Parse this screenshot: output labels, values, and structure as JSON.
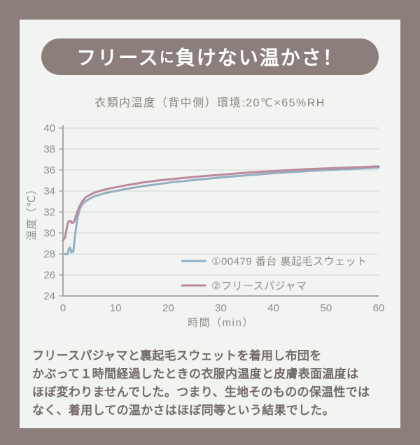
{
  "header": {
    "title_part1": "フリース",
    "title_particle": "に",
    "title_part2": "負けない温かさ！"
  },
  "chart_data": {
    "type": "line",
    "title": "衣類内温度（背中側）環境:20℃×65%RH",
    "xlabel": "時間（min）",
    "ylabel": "温度（℃）",
    "xlim": [
      0,
      60
    ],
    "ylim": [
      24,
      40
    ],
    "x_ticks": [
      0,
      10,
      20,
      30,
      40,
      50,
      60
    ],
    "y_ticks": [
      24,
      26,
      28,
      30,
      32,
      34,
      36,
      38,
      40
    ],
    "grid": true,
    "legend_position": "inside-right-bottom",
    "series": [
      {
        "name": "①00479 番台 裏起毛スウェット",
        "color": "#92afc1",
        "points": [
          [
            0,
            28.0
          ],
          [
            0.9,
            28.0
          ],
          [
            1.1,
            28.5
          ],
          [
            1.35,
            28.6
          ],
          [
            1.6,
            28.15
          ],
          [
            1.95,
            28.25
          ],
          [
            2.3,
            29.8
          ],
          [
            2.7,
            31.3
          ],
          [
            3.1,
            32.2
          ],
          [
            3.6,
            32.7
          ],
          [
            4.2,
            33.0
          ],
          [
            5,
            33.25
          ],
          [
            6,
            33.5
          ],
          [
            7,
            33.65
          ],
          [
            8,
            33.8
          ],
          [
            10,
            34.0
          ],
          [
            12,
            34.2
          ],
          [
            15,
            34.45
          ],
          [
            18,
            34.65
          ],
          [
            21,
            34.85
          ],
          [
            25,
            35.05
          ],
          [
            30,
            35.3
          ],
          [
            35,
            35.5
          ],
          [
            40,
            35.7
          ],
          [
            45,
            35.85
          ],
          [
            50,
            36.0
          ],
          [
            55,
            36.1
          ],
          [
            60,
            36.25
          ]
        ]
      },
      {
        "name": "②フリースパジャマ",
        "color": "#bb8a9e",
        "points": [
          [
            0,
            29.3
          ],
          [
            0.4,
            29.6
          ],
          [
            0.8,
            30.7
          ],
          [
            1.05,
            31.1
          ],
          [
            1.5,
            31.15
          ],
          [
            1.7,
            30.95
          ],
          [
            2.1,
            31.05
          ],
          [
            2.4,
            31.5
          ],
          [
            2.8,
            32.1
          ],
          [
            3.2,
            32.6
          ],
          [
            3.7,
            33.05
          ],
          [
            4.3,
            33.4
          ],
          [
            5,
            33.6
          ],
          [
            6,
            33.85
          ],
          [
            7,
            34.0
          ],
          [
            8,
            34.15
          ],
          [
            10,
            34.35
          ],
          [
            12,
            34.55
          ],
          [
            15,
            34.8
          ],
          [
            18,
            35.0
          ],
          [
            21,
            35.15
          ],
          [
            25,
            35.35
          ],
          [
            30,
            35.55
          ],
          [
            35,
            35.75
          ],
          [
            40,
            35.9
          ],
          [
            45,
            36.05
          ],
          [
            50,
            36.15
          ],
          [
            55,
            36.25
          ],
          [
            60,
            36.35
          ]
        ]
      }
    ]
  },
  "paragraph": {
    "lines": [
      "フリースパジャマと裏起毛スウェットを着用し布団を",
      "かぶって１時間経過したときの衣服内温度と皮膚表面温度は",
      "ほぼ変わりませんでした。つまり、生地そのものの保温性では",
      "なく、着用しての温かさはほぼ同等という結果でした。"
    ]
  },
  "colors": {
    "frame": "#8c7e7a",
    "card_bg": "#f1f4f1",
    "banner_bg": "#8c7e7a",
    "banner_text": "#ffffff",
    "grid": "#d8dbd8",
    "axis": "#a9a9a6",
    "tick_text": "#8e8e8b",
    "paragraph_text": "#746a66"
  }
}
